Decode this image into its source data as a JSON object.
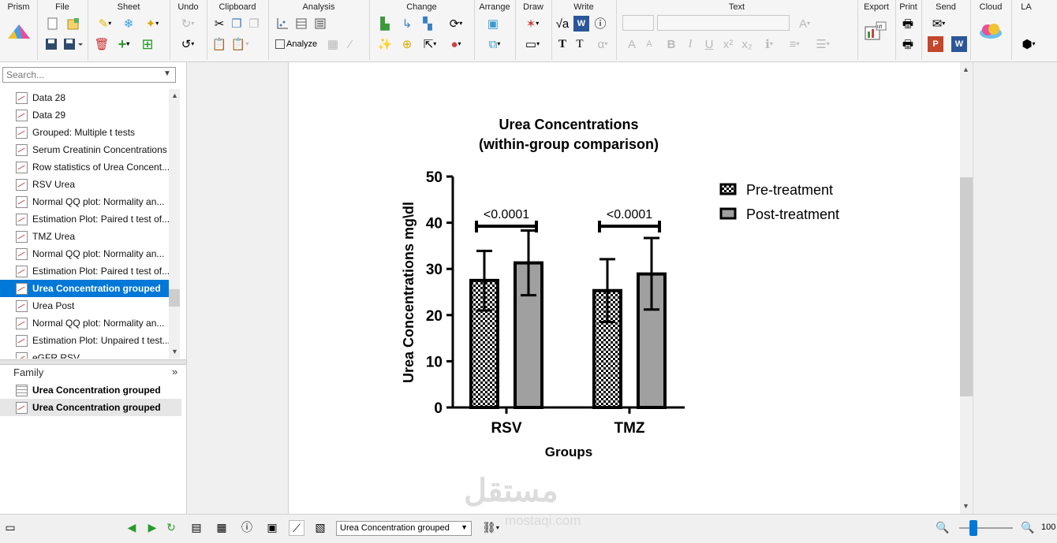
{
  "ribbon": {
    "groups": [
      {
        "id": "prism",
        "title": "Prism"
      },
      {
        "id": "file",
        "title": "File"
      },
      {
        "id": "sheet",
        "title": "Sheet"
      },
      {
        "id": "undo",
        "title": "Undo"
      },
      {
        "id": "clipboard",
        "title": "Clipboard"
      },
      {
        "id": "analysis",
        "title": "Analysis"
      },
      {
        "id": "change",
        "title": "Change"
      },
      {
        "id": "arrange",
        "title": "Arrange"
      },
      {
        "id": "draw",
        "title": "Draw"
      },
      {
        "id": "write",
        "title": "Write"
      },
      {
        "id": "text",
        "title": "Text"
      },
      {
        "id": "export",
        "title": "Export"
      },
      {
        "id": "print",
        "title": "Print"
      },
      {
        "id": "send",
        "title": "Send"
      },
      {
        "id": "cloud",
        "title": "Cloud"
      },
      {
        "id": "la",
        "title": "LA"
      }
    ],
    "analyze_label": "Analyze",
    "icons": {
      "new": "new-sheet-icon",
      "open": "open-icon",
      "save": "save-icon",
      "highlight": "highlighter-icon",
      "snowflake": "snowflake-icon",
      "wand": "wand-icon",
      "delete": "delete-icon",
      "add": "add-icon",
      "undo": "undo-icon",
      "redo": "redo-icon",
      "cut": "cut-icon",
      "copy": "copy-icon",
      "paste": "paste-icon",
      "analyze": "analyze-icon",
      "export": "export-icon",
      "print": "print-icon",
      "mail": "mail-icon",
      "powerpoint": "powerpoint-icon",
      "word": "word-icon",
      "cloud": "cloud-icon",
      "la": "package-icon"
    }
  },
  "navigator": {
    "search_placeholder": "Search...",
    "items": [
      {
        "label": "Data 28",
        "kind": "graph",
        "selected": false
      },
      {
        "label": "Data 29",
        "kind": "graph",
        "selected": false
      },
      {
        "label": "Grouped: Multiple t tests",
        "kind": "graph",
        "selected": false
      },
      {
        "label": "Serum Creatinin Concentrations",
        "kind": "graph",
        "selected": false
      },
      {
        "label": "Row statistics of  Urea Concent...",
        "kind": "graph",
        "selected": false
      },
      {
        "label": "RSV Urea",
        "kind": "graph",
        "selected": false
      },
      {
        "label": "Normal QQ plot: Normality an...",
        "kind": "graph",
        "selected": false
      },
      {
        "label": "Estimation Plot: Paired t test of...",
        "kind": "graph",
        "selected": false
      },
      {
        "label": "TMZ Urea",
        "kind": "graph",
        "selected": false
      },
      {
        "label": "Normal QQ plot: Normality an...",
        "kind": "graph",
        "selected": false
      },
      {
        "label": "Estimation Plot: Paired t test of...",
        "kind": "graph",
        "selected": false
      },
      {
        "label": "Urea Concentration grouped",
        "kind": "graph",
        "selected": true
      },
      {
        "label": "Urea Post",
        "kind": "graph",
        "selected": false
      },
      {
        "label": "Normal QQ plot: Normality an...",
        "kind": "graph",
        "selected": false
      },
      {
        "label": "Estimation Plot: Unpaired t test...",
        "kind": "graph",
        "selected": false
      },
      {
        "label": "eGFR RSV",
        "kind": "graph",
        "selected": false
      }
    ],
    "family_title": "Family",
    "family_collapse": "»",
    "family_items": [
      {
        "label": "Urea Concentration grouped",
        "kind": "table",
        "selected": false
      },
      {
        "label": "Urea Concentration grouped",
        "kind": "graph",
        "selected": true
      }
    ]
  },
  "statusbar": {
    "sheet_select": "Urea Concentration grouped",
    "zoom": "100"
  },
  "watermark": {
    "arabic": "مستقل",
    "latin": "mostaqi.com"
  },
  "chart_data": {
    "type": "bar",
    "title": "Urea Concentrations",
    "subtitle": "(within-group comparison)",
    "xlabel": "Groups",
    "ylabel": "Urea Concentrations mg\\dl",
    "ylim": [
      0,
      50
    ],
    "yticks": [
      "0",
      "10",
      "20",
      "30",
      "40",
      "50"
    ],
    "categories": [
      "RSV",
      "TMZ"
    ],
    "series": [
      {
        "name": "Pre-treatment",
        "values": [
          27.5,
          25.3
        ],
        "err_upper": [
          33.9,
          32.1
        ],
        "err_lower": [
          21.0,
          18.5
        ],
        "fill": "checker"
      },
      {
        "name": "Post-treatment",
        "values": [
          31.3,
          28.9
        ],
        "err_upper": [
          38.3,
          36.7
        ],
        "err_lower": [
          24.3,
          21.2
        ],
        "fill": "#a0a0a0"
      }
    ],
    "annotations": [
      {
        "category": "RSV",
        "text": "<0.0001",
        "y": 41.3
      },
      {
        "category": "TMZ",
        "text": "<0.0001",
        "y": 41.3
      }
    ],
    "legend_position": "top-right",
    "grid": false
  }
}
